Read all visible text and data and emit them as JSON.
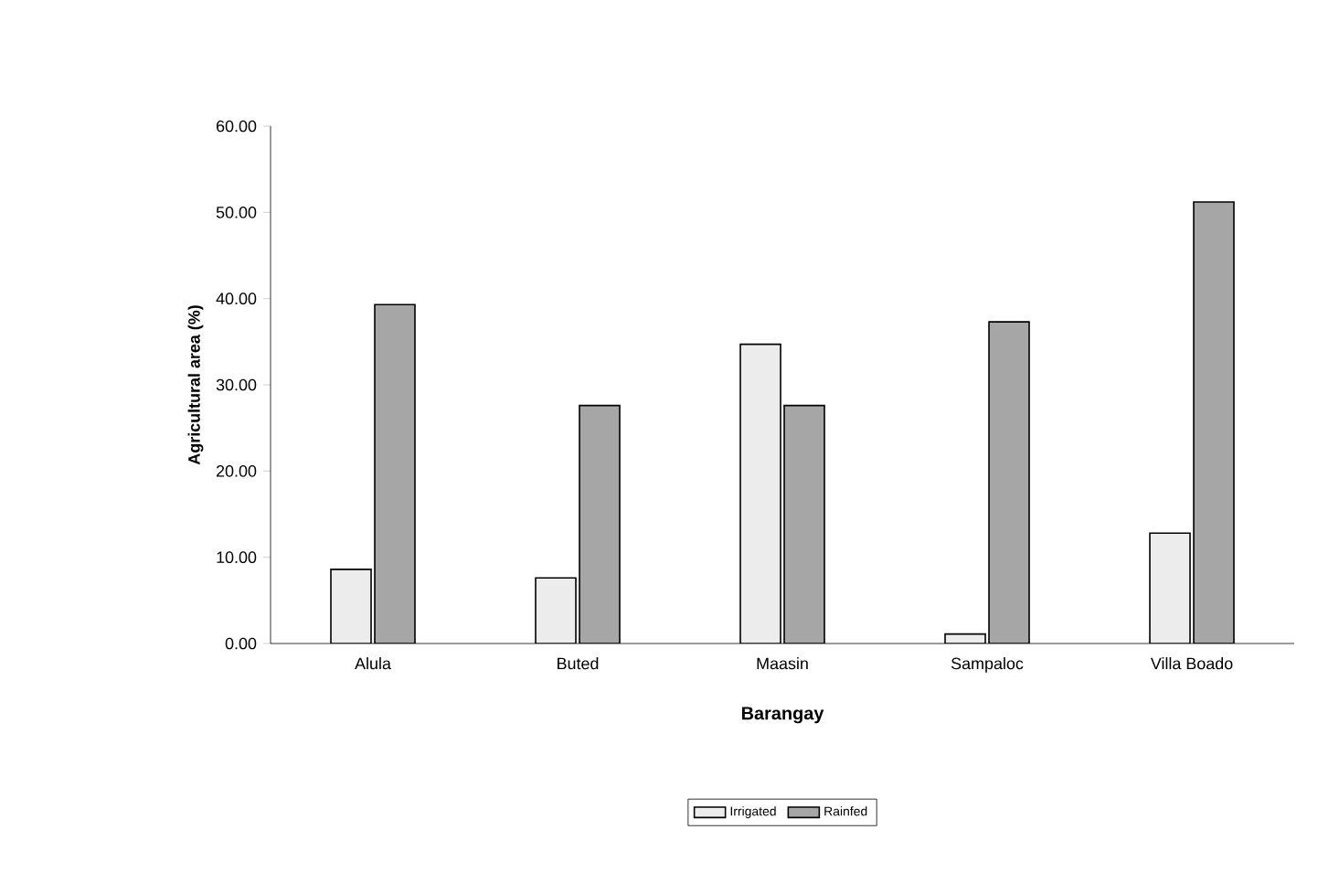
{
  "chart_data": {
    "type": "bar",
    "xlabel": "Barangay",
    "ylabel": "Agricultural area (%)",
    "categories": [
      "Alula",
      "Buted",
      "Maasin",
      "Sampaloc",
      "Villa Boado"
    ],
    "series": [
      {
        "name": "Irrigated",
        "color": "#ececec",
        "values": [
          8.6,
          7.6,
          34.7,
          1.1,
          12.8
        ]
      },
      {
        "name": "Rainfed",
        "color": "#a6a6a6",
        "values": [
          39.3,
          27.6,
          27.6,
          37.3,
          51.2
        ]
      }
    ],
    "ylim": [
      0,
      60
    ],
    "yticks": [
      {
        "value": 0,
        "label": "0.00"
      },
      {
        "value": 10,
        "label": "10.00"
      },
      {
        "value": 20,
        "label": "20.00"
      },
      {
        "value": 30,
        "label": "30.00"
      },
      {
        "value": 40,
        "label": "40.00"
      },
      {
        "value": 50,
        "label": "50.00"
      },
      {
        "value": 60,
        "label": "60.00"
      }
    ],
    "grid": false,
    "legend": "bottom"
  }
}
